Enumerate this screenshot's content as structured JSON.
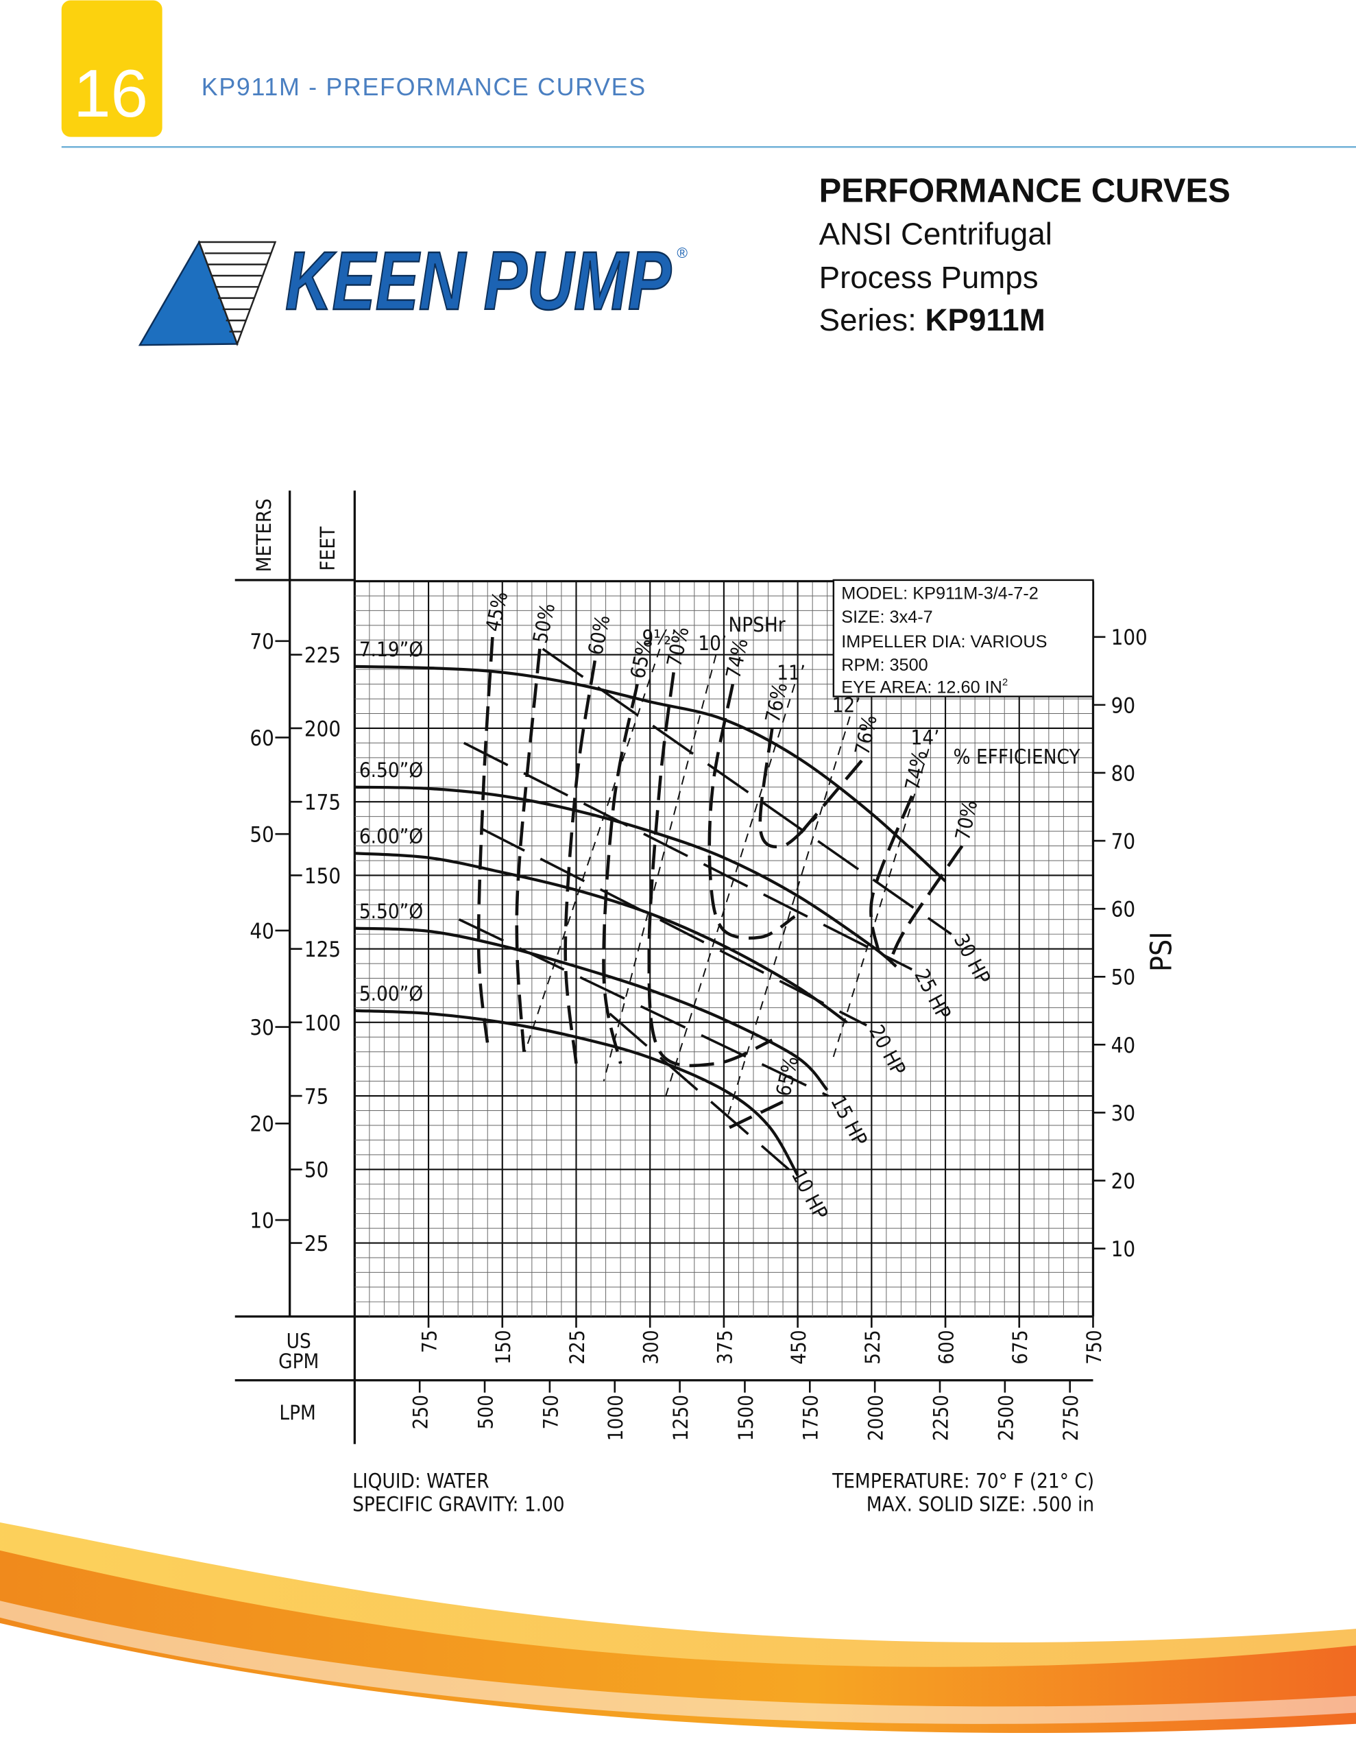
{
  "header": {
    "page_number": "16",
    "title": "KP911M - PREFORMANCE CURVES"
  },
  "logo": {
    "text": "KEEN PUMP",
    "mark": "®"
  },
  "heading": {
    "title": "PERFORMANCE CURVES",
    "line1": "ANSI Centrifugal",
    "line2": "Process Pumps",
    "series_label": "Series: ",
    "series": "KP911M"
  },
  "info_box": {
    "lines": [
      "MODEL: KP911M-3/4-7-2",
      "SIZE: 3x4-7",
      "IMPELLER DIA: VARIOUS",
      "RPM: 3500"
    ],
    "eye_area": "EYE AREA: 12.60 IN",
    "eye_area_power": "2"
  },
  "conditions": {
    "liquid": "LIQUID:  WATER",
    "specific_gravity": "SPECIFIC  GRAVITY:  1.00",
    "temperature": "TEMPERATURE:  70° F (21° C)",
    "max_solid": "MAX.  SOLID  SIZE:  .500  in"
  },
  "chart_data": {
    "type": "line",
    "x_label_lines": [
      "US",
      "GPM"
    ],
    "x2_label": "LPM",
    "y_label": "FEET",
    "y2_label": "METERS",
    "y3_label": "PSI",
    "xlim": [
      0,
      750
    ],
    "xticks": [
      75,
      150,
      225,
      300,
      375,
      450,
      525,
      600,
      675,
      750
    ],
    "x2lim": [
      0,
      2839
    ],
    "x2ticks": [
      250,
      500,
      750,
      1000,
      1250,
      1500,
      1750,
      2000,
      2250,
      2500,
      2750
    ],
    "ylim": [
      0,
      250
    ],
    "yticks": [
      25,
      50,
      75,
      100,
      125,
      150,
      175,
      200,
      225
    ],
    "y2lim": [
      0,
      76.2
    ],
    "y2ticks": [
      10,
      20,
      30,
      40,
      50,
      60,
      70
    ],
    "y3lim": [
      0,
      108.2
    ],
    "y3ticks": [
      10,
      20,
      30,
      40,
      50,
      60,
      70,
      80,
      90,
      100
    ],
    "grid": true,
    "color": "#111111",
    "series": [
      {
        "name": "7.19”Ø",
        "x": [
          0,
          75,
          150,
          225,
          300,
          375,
          450,
          525,
          600
        ],
        "values": [
          221,
          220.5,
          219,
          215,
          209,
          203,
          190,
          171,
          148
        ]
      },
      {
        "name": "6.50”Ø",
        "x": [
          0,
          75,
          150,
          225,
          300,
          375,
          450,
          525,
          550
        ],
        "values": [
          180,
          179.5,
          177,
          172,
          165,
          156,
          143,
          126,
          119
        ]
      },
      {
        "name": "6.00”Ø",
        "x": [
          0,
          75,
          150,
          225,
          300,
          375,
          450,
          500
        ],
        "values": [
          157.5,
          156,
          151,
          145,
          137,
          126,
          112,
          100
        ]
      },
      {
        "name": "5.50”Ø",
        "x": [
          0,
          75,
          150,
          225,
          300,
          375,
          450,
          480
        ],
        "values": [
          132,
          131,
          126,
          119,
          111,
          101,
          88,
          77
        ]
      },
      {
        "name": "5.00”Ø",
        "x": [
          0,
          75,
          150,
          225,
          300,
          375,
          420,
          450
        ],
        "values": [
          104,
          103,
          100,
          95,
          88,
          77,
          65,
          48
        ]
      }
    ],
    "efficiency_label": "% EFFICIENCY",
    "efficiency_curves": [
      {
        "name": "45%",
        "x": [
          140,
          131,
          126,
          136
        ],
        "values": [
          231,
          181,
          124,
          90
        ]
      },
      {
        "name": "50%",
        "x": [
          188,
          168,
          165,
          172
        ],
        "values": [
          227,
          158,
          124,
          90
        ]
      },
      {
        "name": "60%",
        "x": [
          244,
          225,
          214,
          225
        ],
        "values": [
          223,
          181,
          124,
          86
        ]
      },
      {
        "name": "65%",
        "x": [
          287,
          263,
          253,
          270
        ],
        "values": [
          215,
          174,
          116,
          86
        ]
      },
      {
        "name": "70%",
        "x": [
          324,
          310,
          299,
          310,
          367,
          424
        ],
        "values": [
          219,
          181,
          124,
          90,
          86,
          94
        ]
      },
      {
        "name": "74%",
        "x": [
          384,
          364,
          361,
          373,
          413,
          447
        ],
        "values": [
          215,
          181,
          151,
          132,
          129,
          136
        ]
      },
      {
        "name": "76%",
        "x": [
          424,
          412,
          435,
          469
        ],
        "values": [
          200,
          166,
          160,
          170
        ]
      },
      {
        "name": "76%",
        "x": [
          515,
          447
        ],
        "values": [
          189,
          162
        ]
      },
      {
        "name": "74%",
        "x": [
          566,
          526,
          532
        ],
        "values": [
          177,
          143,
          124
        ]
      },
      {
        "name": "70%",
        "x": [
          617,
          560,
          543
        ],
        "values": [
          160,
          132,
          120
        ]
      },
      {
        "name": "65%",
        "x": [
          435,
          373
        ],
        "values": [
          73,
          63
        ]
      }
    ],
    "power_curves": [
      {
        "name": "30  HP",
        "x": [
          191,
          606
        ],
        "values": [
          227,
          130
        ]
      },
      {
        "name": "25  HP",
        "x": [
          111,
          566
        ],
        "values": [
          195,
          118
        ]
      },
      {
        "name": "20  HP",
        "x": [
          128,
          520
        ],
        "values": [
          166,
          99
        ]
      },
      {
        "name": "15  HP",
        "x": [
          106,
          481
        ],
        "values": [
          135,
          75
        ]
      },
      {
        "name": "10  HP",
        "x": [
          259,
          441
        ],
        "values": [
          103,
          50
        ]
      }
    ],
    "npshr_label": "NPSHr",
    "npshr_curves": [
      {
        "name": "9½’",
        "x": [
          310,
          173
        ],
        "values": [
          227,
          90
        ]
      },
      {
        "name": "10’",
        "x": [
          367,
          253
        ],
        "values": [
          225,
          80
        ]
      },
      {
        "name": "11’",
        "x": [
          447,
          316
        ],
        "values": [
          215,
          75
        ]
      },
      {
        "name": "12’",
        "x": [
          503,
          378
        ],
        "values": [
          204,
          67
        ]
      },
      {
        "name": "14’",
        "x": [
          583,
          486
        ],
        "values": [
          193,
          88
        ]
      }
    ]
  }
}
